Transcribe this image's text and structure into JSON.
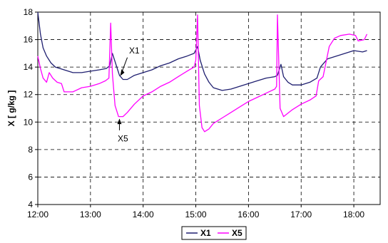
{
  "chart_data": {
    "type": "line",
    "xlabel": "",
    "ylabel": "X [ g/kg ]",
    "xlim": [
      "12:00",
      "18:30"
    ],
    "ylim": [
      4,
      18
    ],
    "x_ticks": [
      "12:00",
      "13:00",
      "14:00",
      "15:00",
      "16:00",
      "17:00",
      "18:00"
    ],
    "y_ticks": [
      4,
      6,
      8,
      10,
      12,
      14,
      16,
      18
    ],
    "grid": true,
    "legend": "bottom-center",
    "series": [
      {
        "name": "X1",
        "color": "#1f1f70",
        "points": [
          [
            "12:00",
            18.0
          ],
          [
            "12:03",
            16.4
          ],
          [
            "12:06",
            15.4
          ],
          [
            "12:10",
            14.8
          ],
          [
            "12:15",
            14.3
          ],
          [
            "12:20",
            14.0
          ],
          [
            "12:30",
            13.8
          ],
          [
            "12:40",
            13.6
          ],
          [
            "12:50",
            13.6
          ],
          [
            "13:00",
            13.7
          ],
          [
            "13:10",
            13.8
          ],
          [
            "13:18",
            13.9
          ],
          [
            "13:22",
            14.1
          ],
          [
            "13:25",
            15.0
          ],
          [
            "13:28",
            14.4
          ],
          [
            "13:31",
            13.8
          ],
          [
            "13:33",
            13.4
          ],
          [
            "13:37",
            13.1
          ],
          [
            "13:42",
            13.1
          ],
          [
            "13:50",
            13.4
          ],
          [
            "14:00",
            13.6
          ],
          [
            "14:10",
            13.8
          ],
          [
            "14:20",
            14.1
          ],
          [
            "14:30",
            14.3
          ],
          [
            "14:40",
            14.6
          ],
          [
            "14:50",
            14.8
          ],
          [
            "14:58",
            15.0
          ],
          [
            "15:02",
            15.5
          ],
          [
            "15:05",
            14.5
          ],
          [
            "15:10",
            13.5
          ],
          [
            "15:15",
            12.9
          ],
          [
            "15:20",
            12.5
          ],
          [
            "15:30",
            12.3
          ],
          [
            "15:40",
            12.4
          ],
          [
            "15:50",
            12.6
          ],
          [
            "16:00",
            12.8
          ],
          [
            "16:10",
            13.0
          ],
          [
            "16:20",
            13.2
          ],
          [
            "16:30",
            13.3
          ],
          [
            "16:33",
            13.4
          ],
          [
            "16:37",
            14.2
          ],
          [
            "16:40",
            13.3
          ],
          [
            "16:45",
            12.9
          ],
          [
            "16:50",
            12.7
          ],
          [
            "17:00",
            12.7
          ],
          [
            "17:10",
            12.9
          ],
          [
            "17:18",
            13.2
          ],
          [
            "17:22",
            14.0
          ],
          [
            "17:30",
            14.6
          ],
          [
            "17:40",
            14.8
          ],
          [
            "17:50",
            15.0
          ],
          [
            "18:00",
            15.2
          ],
          [
            "18:10",
            15.1
          ],
          [
            "18:15",
            15.2
          ]
        ]
      },
      {
        "name": "X5",
        "color": "#ff00ff",
        "points": [
          [
            "12:00",
            14.8
          ],
          [
            "12:03",
            13.9
          ],
          [
            "12:06",
            13.2
          ],
          [
            "12:10",
            12.9
          ],
          [
            "12:13",
            13.6
          ],
          [
            "12:17",
            13.2
          ],
          [
            "12:22",
            12.9
          ],
          [
            "12:27",
            12.8
          ],
          [
            "12:30",
            12.2
          ],
          [
            "12:40",
            12.2
          ],
          [
            "12:50",
            12.5
          ],
          [
            "13:00",
            12.6
          ],
          [
            "13:10",
            12.8
          ],
          [
            "13:17",
            13.0
          ],
          [
            "13:21",
            13.2
          ],
          [
            "13:23",
            17.2
          ],
          [
            "13:25",
            13.5
          ],
          [
            "13:28",
            11.2
          ],
          [
            "13:32",
            10.4
          ],
          [
            "13:37",
            10.4
          ],
          [
            "13:42",
            10.7
          ],
          [
            "13:50",
            11.3
          ],
          [
            "14:00",
            11.9
          ],
          [
            "14:10",
            12.2
          ],
          [
            "14:20",
            12.6
          ],
          [
            "14:30",
            12.9
          ],
          [
            "14:40",
            13.3
          ],
          [
            "14:50",
            13.7
          ],
          [
            "14:58",
            14.0
          ],
          [
            "15:00",
            14.5
          ],
          [
            "15:02",
            17.8
          ],
          [
            "15:04",
            11.2
          ],
          [
            "15:07",
            9.6
          ],
          [
            "15:10",
            9.3
          ],
          [
            "15:15",
            9.5
          ],
          [
            "15:20",
            9.9
          ],
          [
            "15:30",
            10.3
          ],
          [
            "15:40",
            10.7
          ],
          [
            "15:50",
            11.1
          ],
          [
            "16:00",
            11.5
          ],
          [
            "16:10",
            11.8
          ],
          [
            "16:20",
            12.1
          ],
          [
            "16:30",
            12.4
          ],
          [
            "16:32",
            12.6
          ],
          [
            "16:33",
            17.8
          ],
          [
            "16:36",
            11.0
          ],
          [
            "16:40",
            10.4
          ],
          [
            "16:44",
            10.6
          ],
          [
            "16:50",
            10.9
          ],
          [
            "17:00",
            11.3
          ],
          [
            "17:10",
            11.6
          ],
          [
            "17:17",
            11.9
          ],
          [
            "17:20",
            13.0
          ],
          [
            "17:25",
            13.3
          ],
          [
            "17:32",
            15.5
          ],
          [
            "17:38",
            16.1
          ],
          [
            "17:45",
            16.3
          ],
          [
            "17:55",
            16.4
          ],
          [
            "18:02",
            16.3
          ],
          [
            "18:05",
            15.9
          ],
          [
            "18:12",
            16.0
          ],
          [
            "18:15",
            16.4
          ]
        ]
      }
    ],
    "annotations": [
      {
        "text": "X1",
        "series": "X1"
      },
      {
        "text": "X5",
        "series": "X5"
      }
    ]
  }
}
